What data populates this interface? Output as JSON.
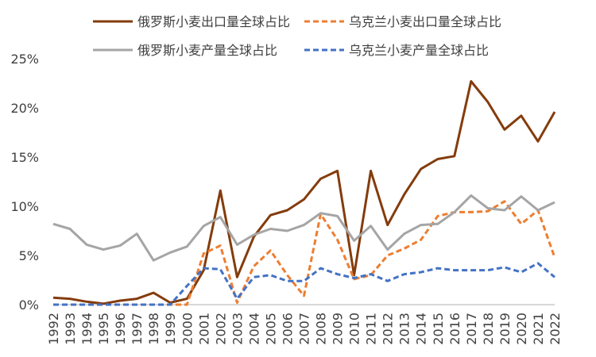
{
  "chart_data": {
    "type": "line",
    "title": "",
    "xlabel": "",
    "ylabel": "",
    "ylim": [
      0,
      25
    ],
    "yticks": [
      "0%",
      "5%",
      "10%",
      "15%",
      "20%",
      "25%"
    ],
    "x": [
      "1992",
      "1993",
      "1994",
      "1995",
      "1996",
      "1997",
      "1998",
      "1999",
      "2000",
      "2001",
      "2002",
      "2003",
      "2004",
      "2005",
      "2006",
      "2007",
      "2008",
      "2009",
      "2010",
      "2011",
      "2012",
      "2013",
      "2014",
      "2015",
      "2016",
      "2017",
      "2018",
      "2019",
      "2020",
      "2021",
      "2022"
    ],
    "legend_position": "top",
    "grid": false,
    "series": [
      {
        "name": "俄罗斯小麦出口量全球占比",
        "color": "#843C0C",
        "dash": "solid",
        "values": [
          0.7,
          0.6,
          0.3,
          0.1,
          0.4,
          0.6,
          1.2,
          0.2,
          0.6,
          3.5,
          11.6,
          2.8,
          6.9,
          9.1,
          9.6,
          10.7,
          12.8,
          13.6,
          3.0,
          13.6,
          8.1,
          11.2,
          13.8,
          14.8,
          15.1,
          22.7,
          20.6,
          17.8,
          19.2,
          16.6,
          19.6
        ]
      },
      {
        "name": "乌克兰小麦出口量全球占比",
        "color": "#ED7D31",
        "dash": "dashed",
        "values": [
          0,
          0,
          0,
          0,
          0,
          0,
          0,
          0,
          0,
          5.2,
          6.0,
          0.2,
          3.9,
          5.5,
          3.0,
          0.9,
          9.2,
          6.6,
          2.6,
          3.0,
          5.0,
          5.7,
          6.6,
          9.0,
          9.4,
          9.4,
          9.5,
          10.5,
          8.2,
          9.6,
          4.8
        ]
      },
      {
        "name": "俄罗斯小麦产量全球占比",
        "color": "#A5A5A5",
        "dash": "solid",
        "values": [
          8.2,
          7.7,
          6.1,
          5.6,
          6.0,
          7.2,
          4.5,
          5.3,
          5.9,
          8.0,
          8.9,
          6.1,
          7.1,
          7.7,
          7.5,
          8.1,
          9.3,
          9.0,
          6.5,
          8.0,
          5.6,
          7.2,
          8.1,
          8.2,
          9.4,
          11.1,
          9.8,
          9.6,
          11.0,
          9.6,
          10.4
        ]
      },
      {
        "name": "乌克兰小麦产量全球占比",
        "color": "#4472C4",
        "dash": "dashed",
        "values": [
          0,
          0,
          0,
          0,
          0,
          0,
          0,
          0,
          1.9,
          3.7,
          3.6,
          0.6,
          2.8,
          3.0,
          2.4,
          2.4,
          3.7,
          3.1,
          2.7,
          3.1,
          2.4,
          3.1,
          3.3,
          3.7,
          3.5,
          3.5,
          3.5,
          3.8,
          3.3,
          4.2,
          2.8
        ]
      }
    ]
  }
}
